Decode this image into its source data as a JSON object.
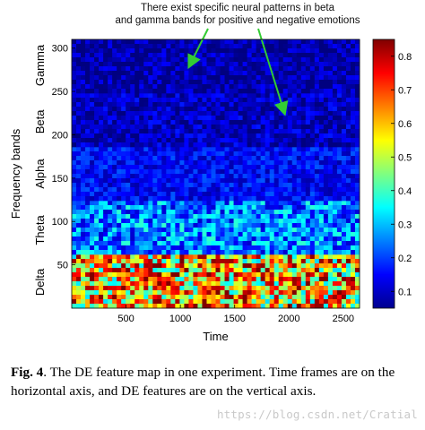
{
  "chart_data": {
    "type": "heatmap",
    "annotation": [
      "There exist specific neural patterns in beta",
      "and gamma bands for positive and negative emotions"
    ],
    "xlabel": "Time",
    "ylabel": "Frequency bands",
    "xlim": [
      0,
      2650
    ],
    "ylim": [
      0,
      310
    ],
    "x_ticks": [
      500,
      1000,
      1500,
      2000,
      2500
    ],
    "y_ticks": [
      50,
      100,
      150,
      200,
      250,
      300
    ],
    "band_labels": [
      {
        "name": "Delta",
        "center": 30
      },
      {
        "name": "Theta",
        "center": 90
      },
      {
        "name": "Alpha",
        "center": 155
      },
      {
        "name": "Beta",
        "center": 215
      },
      {
        "name": "Gamma",
        "center": 280
      }
    ],
    "colorbar": {
      "range": [
        0.05,
        0.85
      ],
      "ticks": [
        0.1,
        0.2,
        0.3,
        0.4,
        0.5,
        0.6,
        0.7,
        0.8
      ]
    },
    "band_mean_values": [
      {
        "band": "Delta",
        "y_range": [
          0,
          62
        ],
        "mean": 0.6
      },
      {
        "band": "Theta",
        "y_range": [
          62,
          124
        ],
        "mean": 0.25
      },
      {
        "band": "Alpha",
        "y_range": [
          124,
          186
        ],
        "mean": 0.15
      },
      {
        "band": "Beta",
        "y_range": [
          186,
          248
        ],
        "mean": 0.1
      },
      {
        "band": "Gamma",
        "y_range": [
          248,
          310
        ],
        "mean": 0.08
      }
    ]
  },
  "caption": {
    "label": "Fig. 4",
    "text": ". The DE feature map in one experiment. Time frames are on the horizontal axis, and DE features are on the vertical axis."
  },
  "watermark": "https://blog.csdn.net/Cratial"
}
